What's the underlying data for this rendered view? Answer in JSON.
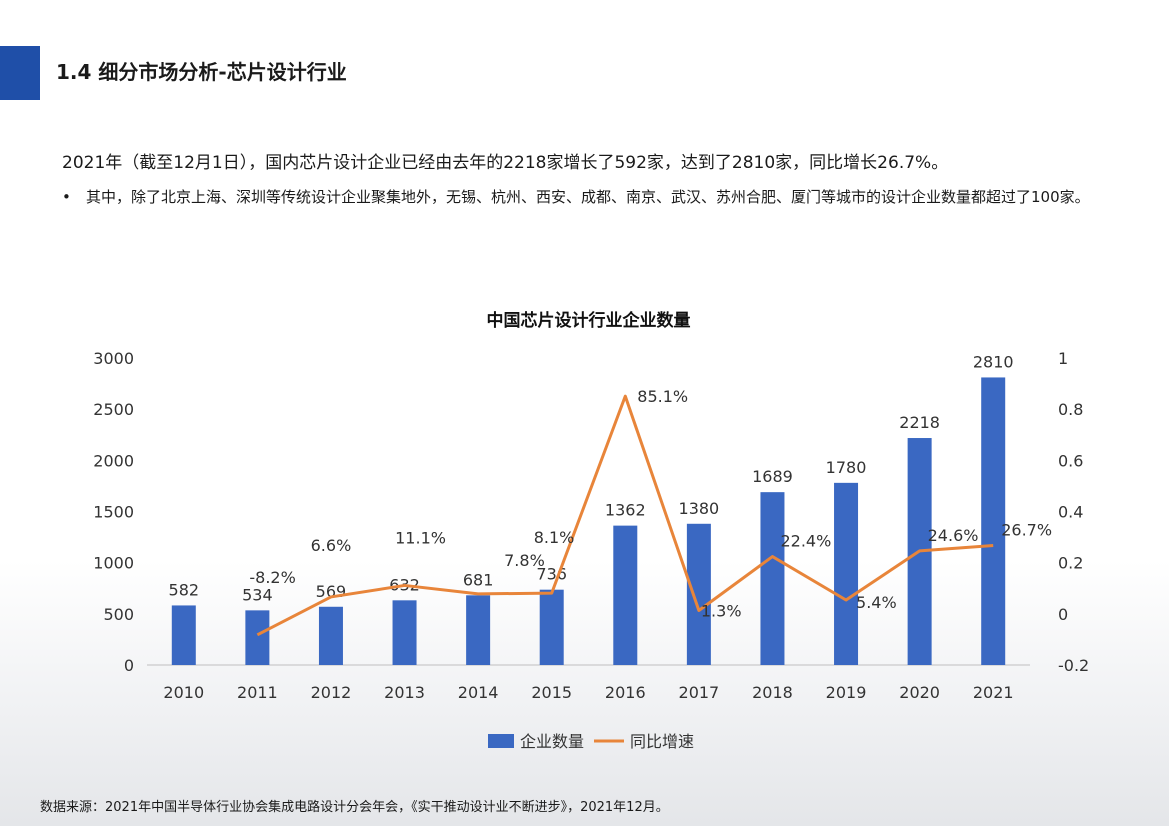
{
  "header": {
    "title": "1.4 细分市场分析-芯片设计行业"
  },
  "intro": {
    "lead": "2021年（截至12月1日），国内芯片设计企业已经由去年的2218家增长了592家，达到了2810家，同比增长26.7%。",
    "bullet_mark": "•",
    "bullet_text": "其中，除了北京上海、深圳等传统设计企业聚集地外，无锡、杭州、西安、成都、南京、武汉、苏州合肥、厦门等城市的设计企业数量都超过了100家。"
  },
  "colors": {
    "accent": "#1f4fa8",
    "bar": "#3a68c2",
    "line": "#e8853a"
  },
  "chart_data": {
    "type": "bar",
    "title": "中国芯片设计行业企业数量",
    "categories": [
      "2010",
      "2011",
      "2012",
      "2013",
      "2014",
      "2015",
      "2016",
      "2017",
      "2018",
      "2019",
      "2020",
      "2021"
    ],
    "series": [
      {
        "name": "企业数量",
        "type": "bar",
        "axis": "left",
        "values": [
          582,
          534,
          569,
          632,
          681,
          736,
          1362,
          1380,
          1689,
          1780,
          2218,
          2810
        ],
        "labels": [
          "582",
          "534",
          "569",
          "632",
          "681",
          "736",
          "1362",
          "1380",
          "1689",
          "1780",
          "2218",
          "2810"
        ]
      },
      {
        "name": "同比增速",
        "type": "line",
        "axis": "right",
        "values": [
          null,
          -0.082,
          0.066,
          0.111,
          0.078,
          0.081,
          0.851,
          0.013,
          0.224,
          0.054,
          0.246,
          0.267
        ],
        "labels": [
          null,
          "-8.2%",
          "6.6%",
          "11.1%",
          "7.8%",
          "8.1%",
          "85.1%",
          "1.3%",
          "22.4%",
          "5.4%",
          "24.6%",
          "26.7%"
        ]
      }
    ],
    "y_left": {
      "min": 0,
      "max": 3000,
      "ticks": [
        "0",
        "500",
        "1000",
        "1500",
        "2000",
        "2500",
        "3000"
      ]
    },
    "y_right": {
      "min": -0.2,
      "max": 1,
      "ticks": [
        "-0.2",
        "0",
        "0.2",
        "0.4",
        "0.6",
        "0.8",
        "1"
      ]
    },
    "grid": false,
    "legend_position": "bottom"
  },
  "source": {
    "text": "数据来源：2021年中国半导体行业协会集成电路设计分会年会，《实干推动设计业不断进步》，2021年12月。"
  }
}
